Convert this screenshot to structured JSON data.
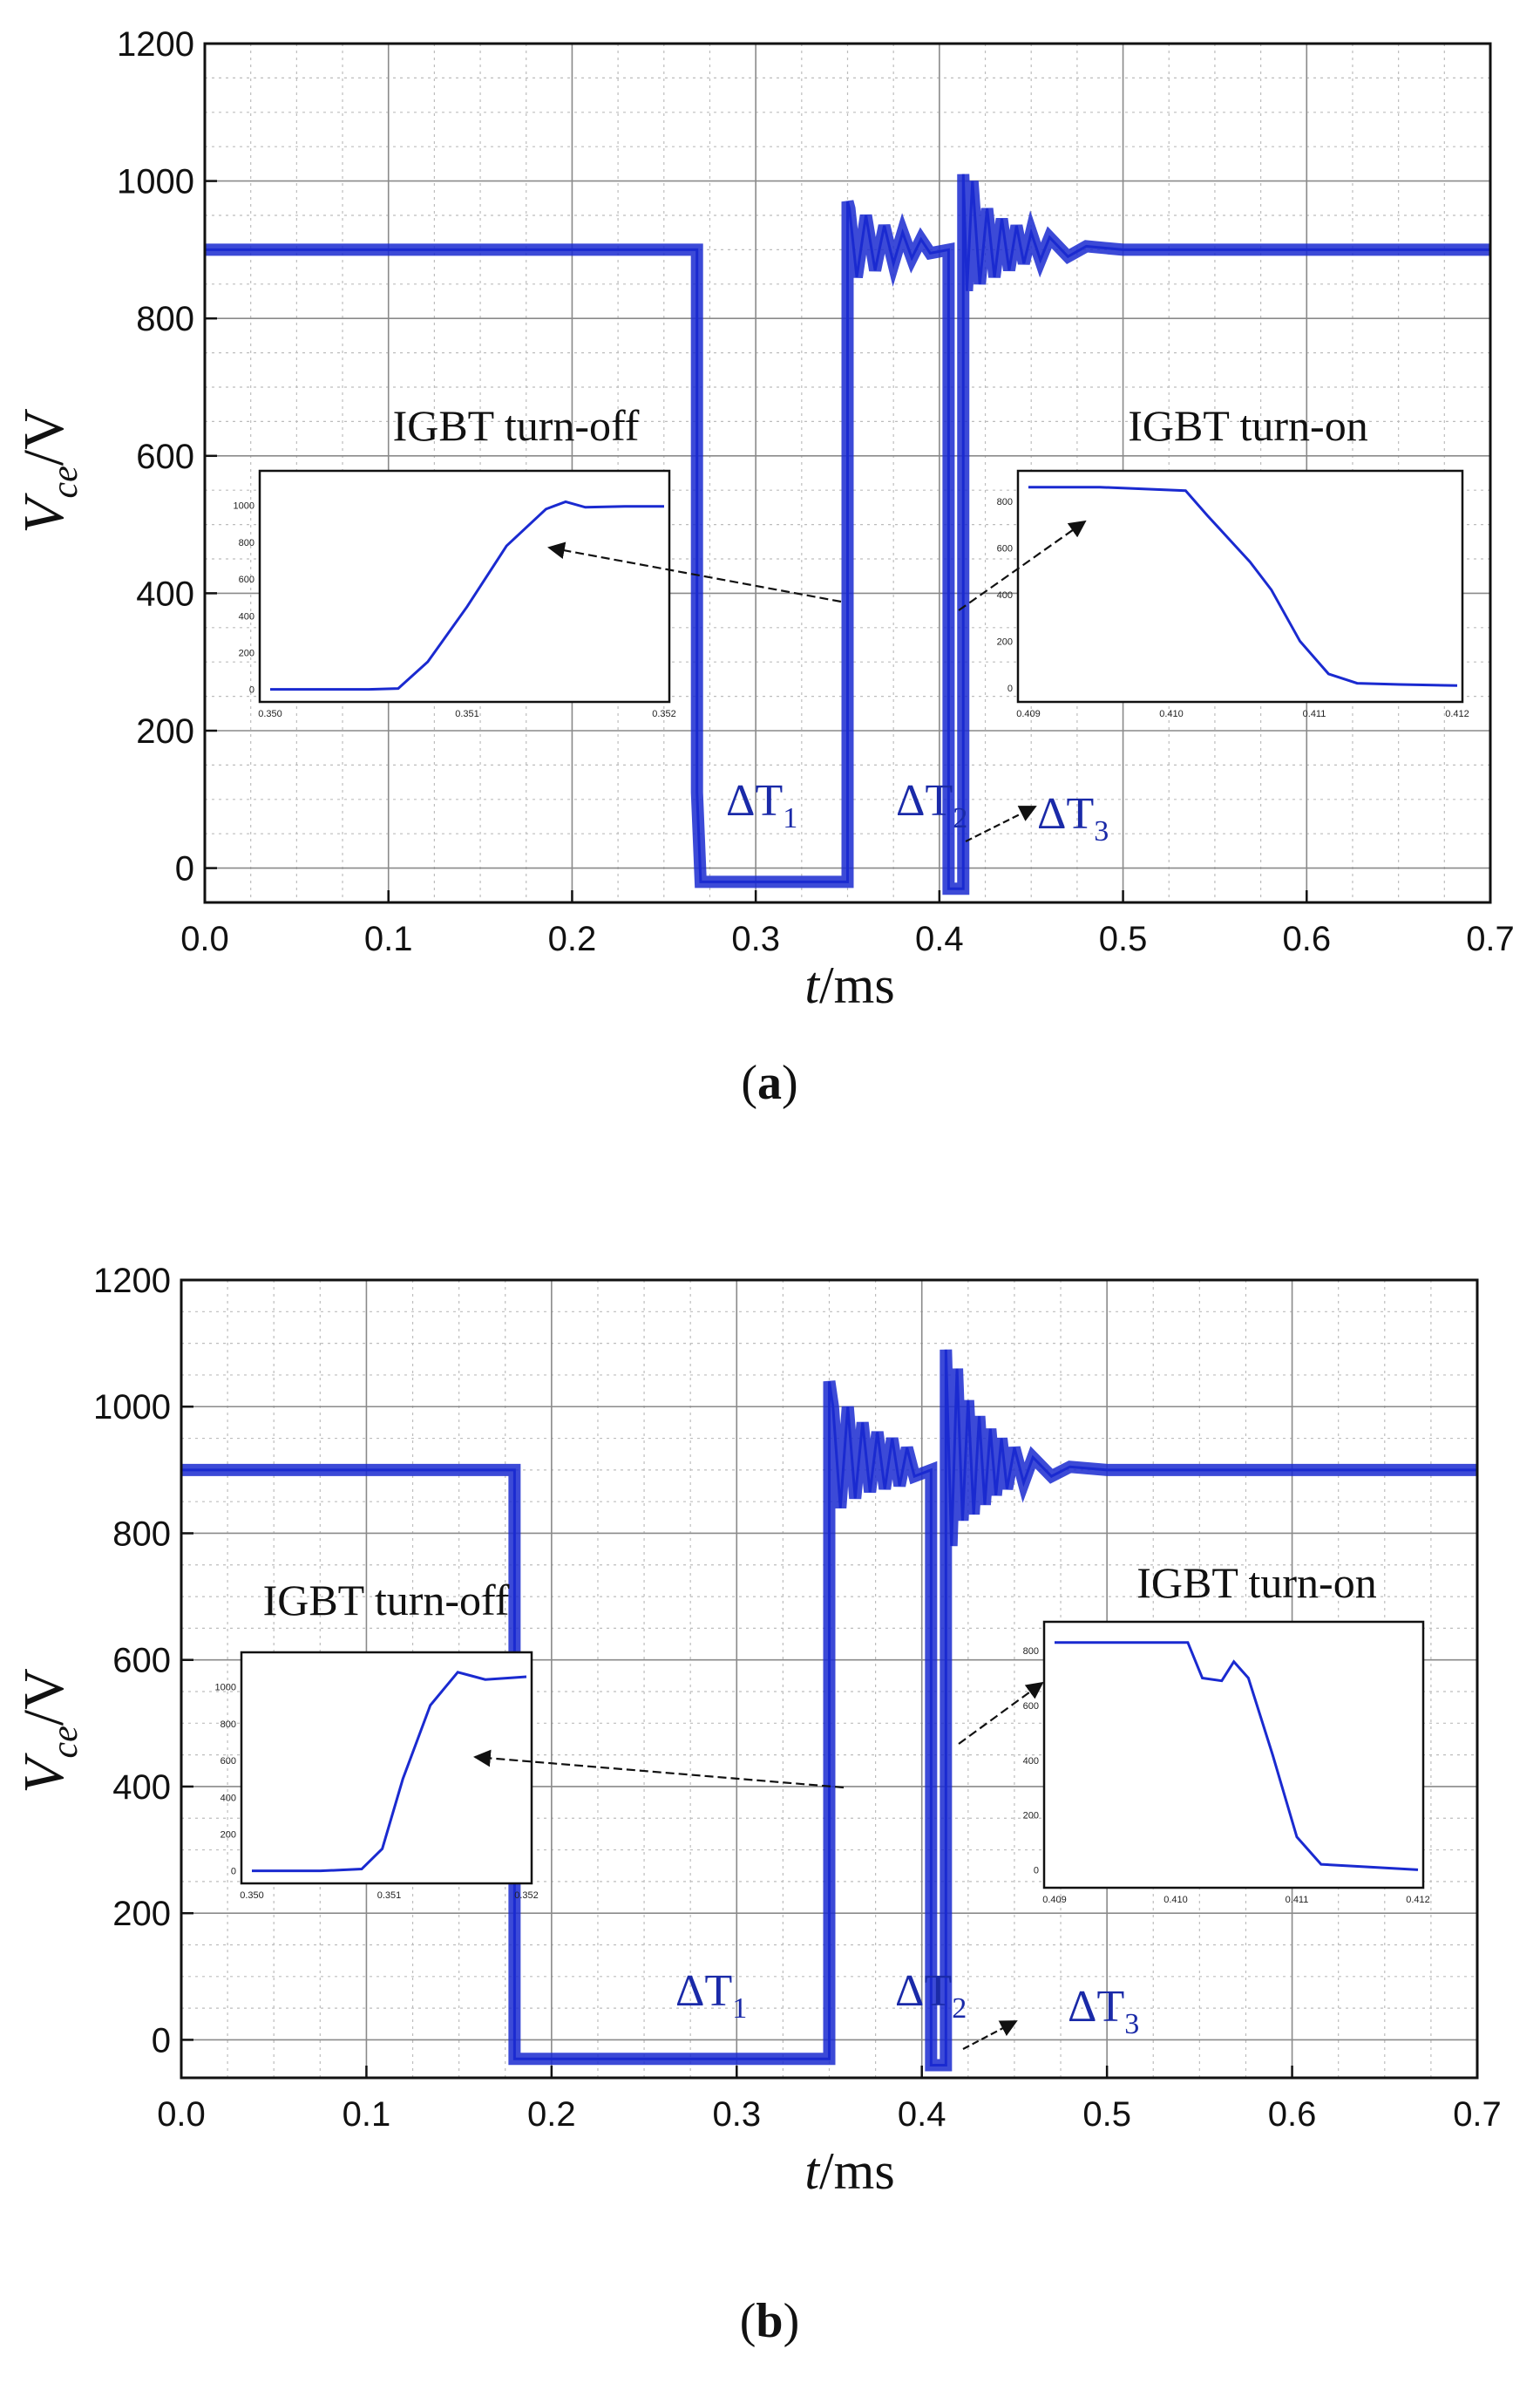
{
  "chart_data": [
    {
      "panel": "a",
      "type": "line",
      "caption_letter": "a",
      "xlabel_var": "t",
      "xlabel_unit": "/ms",
      "ylabel_var": "V",
      "ylabel_sub": "ce",
      "ylabel_unit": "/V",
      "xlim": [
        0,
        0.7
      ],
      "ylim": [
        -50,
        1200
      ],
      "xticks": [
        "0.0",
        "0.1",
        "0.2",
        "0.3",
        "0.4",
        "0.5",
        "0.6",
        "0.7"
      ],
      "yticks": [
        "0",
        "200",
        "400",
        "600",
        "800",
        "1000",
        "1200"
      ],
      "xtick_values": [
        0,
        0.1,
        0.2,
        0.3,
        0.4,
        0.5,
        0.6,
        0.7
      ],
      "ytick_values": [
        0,
        200,
        400,
        600,
        800,
        1000,
        1200
      ],
      "series": [
        {
          "name": "Vce",
          "color": "#1a2ad0",
          "x": [
            0,
            0.268,
            0.268,
            0.27,
            0.35,
            0.35,
            0.351,
            0.355,
            0.36,
            0.365,
            0.37,
            0.375,
            0.38,
            0.385,
            0.39,
            0.395,
            0.405,
            0.405,
            0.413,
            0.413,
            0.415,
            0.418,
            0.422,
            0.426,
            0.43,
            0.434,
            0.438,
            0.442,
            0.446,
            0.45,
            0.455,
            0.46,
            0.47,
            0.48,
            0.5,
            0.7
          ],
          "y": [
            900,
            900,
            110,
            -20,
            -20,
            970,
            960,
            860,
            950,
            870,
            935,
            880,
            925,
            888,
            915,
            895,
            900,
            -30,
            -30,
            1010,
            840,
            1000,
            850,
            960,
            860,
            945,
            870,
            935,
            880,
            925,
            885,
            918,
            890,
            905,
            900,
            900
          ]
        }
      ],
      "annotations": {
        "turn_off_label": "IGBT turn-off",
        "turn_on_label": "IGBT turn-on",
        "dt1_base": "ΔT",
        "dt1_sub": "1",
        "dt2_base": "ΔT",
        "dt2_sub": "2",
        "dt3_base": "ΔT",
        "dt3_sub": "3"
      },
      "insets": [
        {
          "name": "turn-off inset",
          "xticks": [
            "0.350",
            "0.351",
            "0.352"
          ],
          "yticks": [
            "0",
            "200",
            "400",
            "600",
            "800",
            "1000"
          ],
          "xlim": [
            0.35,
            0.352
          ],
          "ylim": [
            -30,
            1150
          ],
          "x": [
            0.35,
            0.3505,
            0.35065,
            0.3508,
            0.351,
            0.3512,
            0.3514,
            0.3515,
            0.3516,
            0.3518,
            0.352
          ],
          "y": [
            0,
            0,
            5,
            150,
            450,
            780,
            980,
            1020,
            990,
            995,
            995
          ]
        },
        {
          "name": "turn-on inset",
          "xticks": [
            "0.409",
            "0.410",
            "0.411",
            "0.412"
          ],
          "yticks": [
            "0",
            "200",
            "400",
            "600",
            "800"
          ],
          "xlim": [
            0.409,
            0.412
          ],
          "ylim": [
            -30,
            900
          ],
          "x": [
            0.409,
            0.4095,
            0.4101,
            0.41025,
            0.4104,
            0.41055,
            0.4107,
            0.4109,
            0.4111,
            0.4113,
            0.4116,
            0.412
          ],
          "y": [
            860,
            860,
            845,
            740,
            640,
            540,
            420,
            200,
            60,
            20,
            15,
            10
          ]
        }
      ]
    },
    {
      "panel": "b",
      "type": "line",
      "caption_letter": "b",
      "xlabel_var": "t",
      "xlabel_unit": "/ms",
      "ylabel_var": "V",
      "ylabel_sub": "ce",
      "ylabel_unit": "/V",
      "xlim": [
        0,
        0.7
      ],
      "ylim": [
        -60,
        1200
      ],
      "xticks": [
        "0.0",
        "0.1",
        "0.2",
        "0.3",
        "0.4",
        "0.5",
        "0.6",
        "0.7"
      ],
      "yticks": [
        "0",
        "200",
        "400",
        "600",
        "800",
        "1000",
        "1200"
      ],
      "xtick_values": [
        0,
        0.1,
        0.2,
        0.3,
        0.4,
        0.5,
        0.6,
        0.7
      ],
      "ytick_values": [
        0,
        200,
        400,
        600,
        800,
        1000,
        1200
      ],
      "series": [
        {
          "name": "Vce",
          "color": "#1a2ad0",
          "x": [
            0,
            0.18,
            0.18,
            0.182,
            0.35,
            0.35,
            0.352,
            0.356,
            0.36,
            0.364,
            0.368,
            0.372,
            0.376,
            0.38,
            0.384,
            0.388,
            0.392,
            0.396,
            0.405,
            0.405,
            0.413,
            0.413,
            0.416,
            0.419,
            0.422,
            0.425,
            0.428,
            0.431,
            0.434,
            0.437,
            0.44,
            0.443,
            0.446,
            0.45,
            0.455,
            0.46,
            0.47,
            0.48,
            0.5,
            0.7
          ],
          "y": [
            900,
            900,
            -30,
            -30,
            -30,
            1040,
            1000,
            840,
            1000,
            855,
            975,
            865,
            960,
            870,
            950,
            875,
            935,
            890,
            900,
            -40,
            -40,
            1090,
            780,
            1060,
            820,
            1010,
            830,
            985,
            845,
            965,
            860,
            950,
            870,
            935,
            880,
            920,
            890,
            905,
            900,
            900
          ]
        }
      ],
      "annotations": {
        "turn_off_label": "IGBT turn-off",
        "turn_on_label": "IGBT turn-on",
        "dt1_base": "ΔT",
        "dt1_sub": "1",
        "dt2_base": "ΔT",
        "dt2_sub": "2",
        "dt3_base": "ΔT",
        "dt3_sub": "3"
      },
      "insets": [
        {
          "name": "turn-off inset",
          "xticks": [
            "0.350",
            "0.351",
            "0.352"
          ],
          "yticks": [
            "0",
            "200",
            "400",
            "600",
            "800",
            "1000"
          ],
          "xlim": [
            0.35,
            0.352
          ],
          "ylim": [
            -30,
            1150
          ],
          "x": [
            0.35,
            0.3505,
            0.3508,
            0.35095,
            0.3511,
            0.3513,
            0.3515,
            0.3516,
            0.3517,
            0.3519,
            0.352
          ],
          "y": [
            0,
            0,
            10,
            120,
            500,
            900,
            1080,
            1060,
            1040,
            1050,
            1055
          ]
        },
        {
          "name": "turn-on inset",
          "xticks": [
            "0.409",
            "0.410",
            "0.411",
            "0.412"
          ],
          "yticks": [
            "0",
            "200",
            "400",
            "600",
            "800"
          ],
          "xlim": [
            0.409,
            0.412
          ],
          "ylim": [
            -40,
            880
          ],
          "x": [
            0.409,
            0.4098,
            0.4101,
            0.41022,
            0.41038,
            0.41048,
            0.4106,
            0.4108,
            0.411,
            0.4112,
            0.4116,
            0.412
          ],
          "y": [
            830,
            830,
            830,
            700,
            690,
            760,
            700,
            420,
            120,
            20,
            10,
            0
          ]
        }
      ]
    }
  ]
}
